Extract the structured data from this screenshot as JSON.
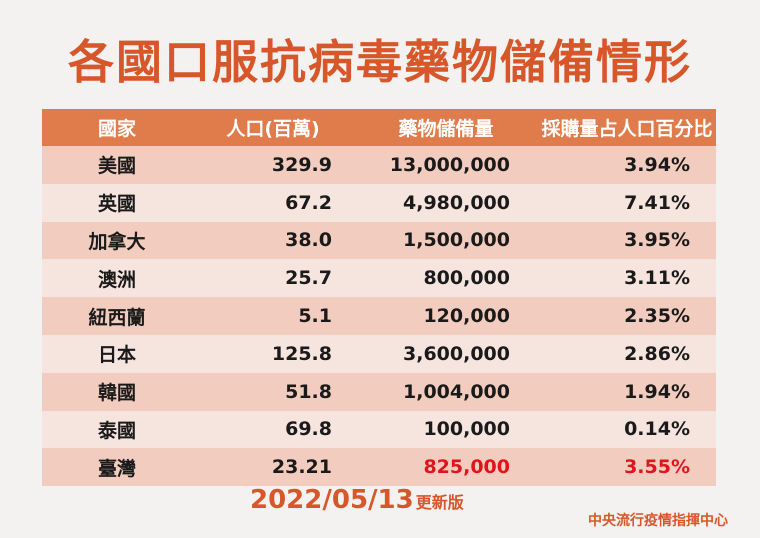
{
  "title": "各國口服抗病毒藥物儲備情形",
  "table": {
    "headers": [
      "國家",
      "人口(百萬)",
      "藥物儲備量",
      "採購量占人口百分比"
    ],
    "rows": [
      [
        "美國",
        "329.9",
        "13,000,000",
        "3.94%"
      ],
      [
        "英國",
        "67.2",
        "4,980,000",
        "7.41%"
      ],
      [
        "加拿大",
        "38.0",
        "1,500,000",
        "3.95%"
      ],
      [
        "澳洲",
        "25.7",
        "800,000",
        "3.11%"
      ],
      [
        "紐西蘭",
        "5.1",
        "120,000",
        "2.35%"
      ],
      [
        "日本",
        "125.8",
        "3,600,000",
        "2.86%"
      ],
      [
        "韓國",
        "51.8",
        "1,004,000",
        "1.94%"
      ],
      [
        "泰國",
        "69.8",
        "100,000",
        "0.14%"
      ],
      [
        "臺灣",
        "23.21",
        "825,000",
        "3.55%"
      ]
    ],
    "highlight_color": "#e0141a"
  },
  "footer": {
    "date": "2022/05/13",
    "version_label": "更新版",
    "source": "中央流行疫情指揮中心"
  }
}
